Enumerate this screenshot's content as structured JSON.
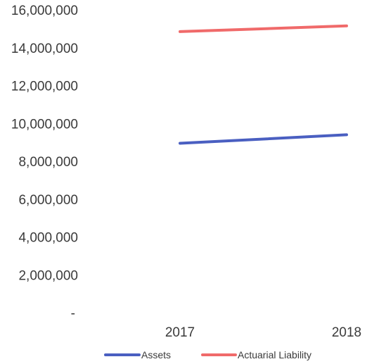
{
  "chart_data": {
    "type": "line",
    "title": "",
    "xlabel": "",
    "ylabel": "",
    "categories": [
      "2017",
      "2018"
    ],
    "ylim": [
      0,
      16000000
    ],
    "yticks": [
      {
        "value": 0,
        "label": "-"
      },
      {
        "value": 2000000,
        "label": "2,000,000"
      },
      {
        "value": 4000000,
        "label": "4,000,000"
      },
      {
        "value": 6000000,
        "label": "6,000,000"
      },
      {
        "value": 8000000,
        "label": "8,000,000"
      },
      {
        "value": 10000000,
        "label": "10,000,000"
      },
      {
        "value": 12000000,
        "label": "12,000,000"
      },
      {
        "value": 14000000,
        "label": "14,000,000"
      },
      {
        "value": 16000000,
        "label": "16,000,000"
      }
    ],
    "grid": false,
    "legend_position": "bottom",
    "series": [
      {
        "name": "Assets",
        "color": "#4a5fc1",
        "values": [
          8950000,
          9400000
        ]
      },
      {
        "name": "Actuarial Liability",
        "color": "#f06a6a",
        "values": [
          14850000,
          15150000
        ]
      }
    ]
  }
}
